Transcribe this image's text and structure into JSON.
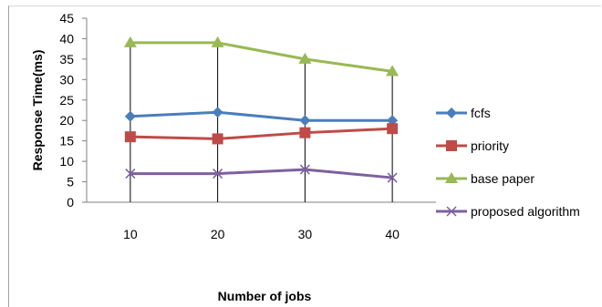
{
  "chart_data": {
    "type": "line",
    "title": "",
    "xlabel": "Number of jobs",
    "ylabel": "Response Time(ms)",
    "categories": [
      "10",
      "20",
      "30",
      "40"
    ],
    "ylim": [
      0,
      45
    ],
    "ytick_step": 5,
    "grid": false,
    "drop_lines": true,
    "legend_position": "right",
    "series": [
      {
        "name": "fcfs",
        "values": [
          21,
          22,
          20,
          20
        ],
        "color": "#4a7ebb",
        "marker": "diamond"
      },
      {
        "name": "priority",
        "values": [
          16,
          15.5,
          17,
          18
        ],
        "color": "#be4b48",
        "marker": "square"
      },
      {
        "name": "base paper",
        "values": [
          39,
          39,
          35,
          32
        ],
        "color": "#98b954",
        "marker": "triangle"
      },
      {
        "name": "proposed algorithm",
        "values": [
          7,
          7,
          8,
          6
        ],
        "color": "#7d60a0",
        "marker": "x"
      }
    ]
  }
}
